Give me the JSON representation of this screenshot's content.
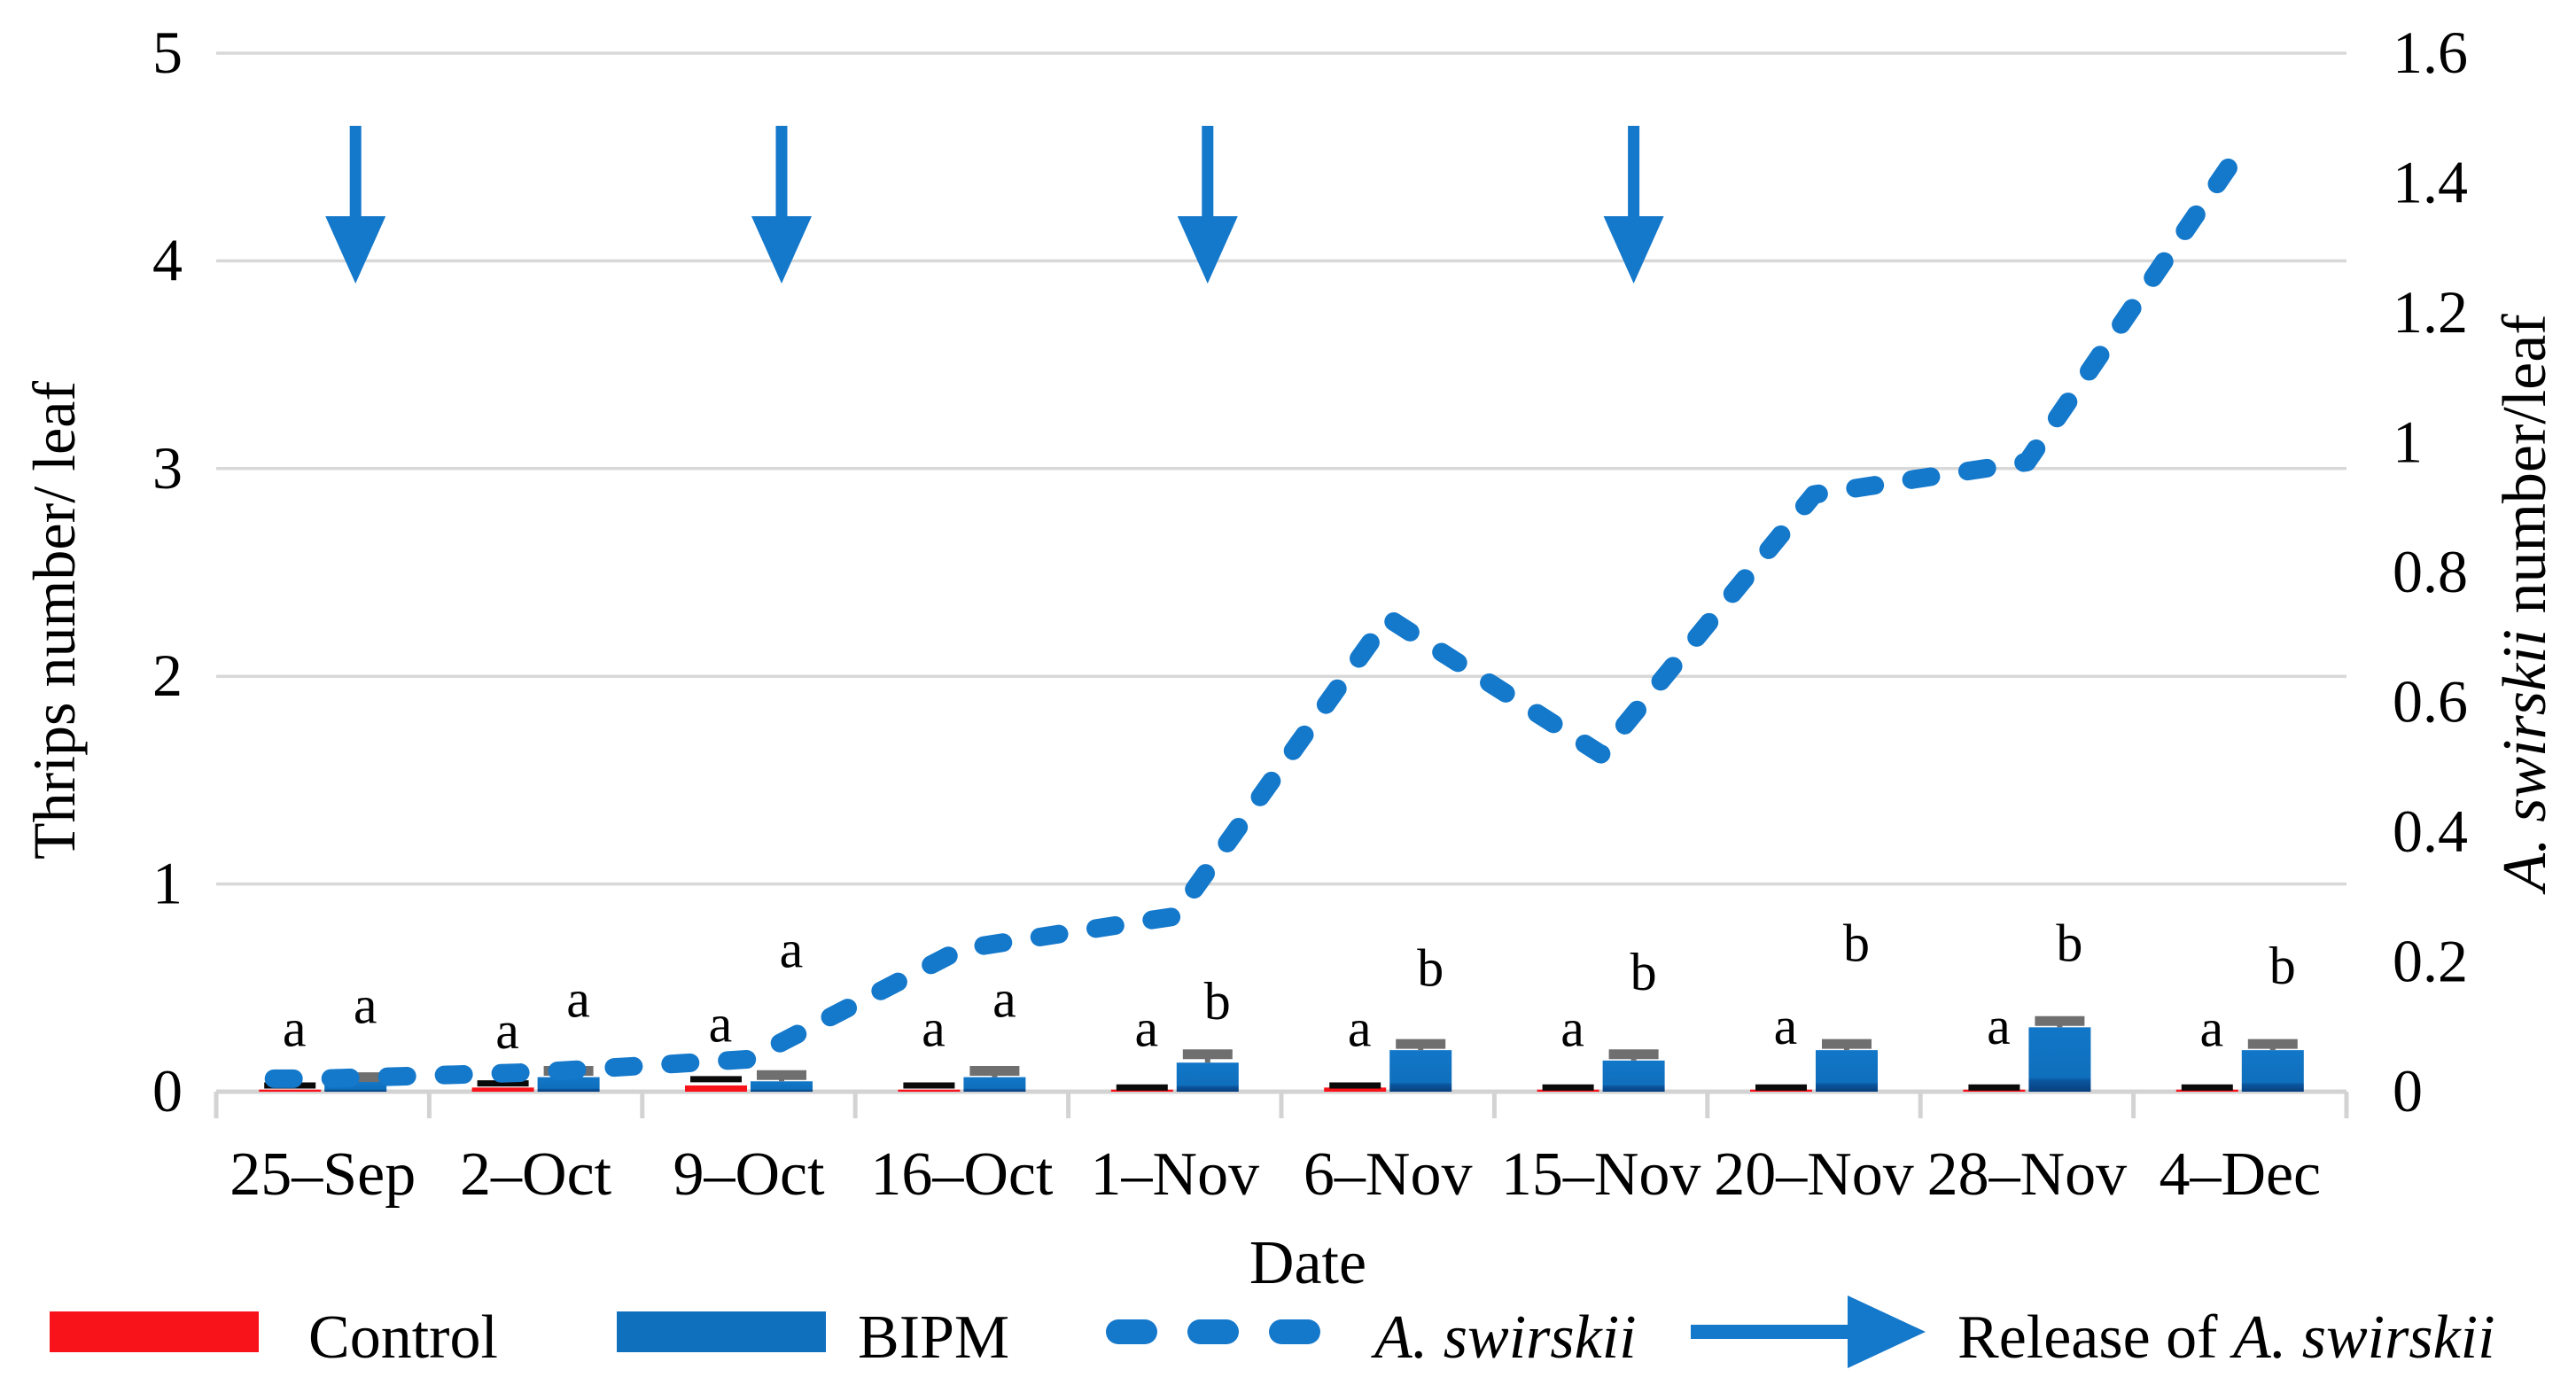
{
  "figure": {
    "kind": "dual-axis clustered bar and dashed line chart",
    "background": "#ffffff"
  },
  "colors": {
    "accent_blue": "#1478CB",
    "bar_blue": "#0F70BE",
    "bar_blue_dark": "#083F7E",
    "control_red": "#F8121A",
    "grid_gray": "#D8D8D8",
    "axis_gray": "#D3D3D3",
    "error_gray": "#6F6F6F",
    "error_black": "#0A0A0A",
    "text": "#000000"
  },
  "left_axis": {
    "title": "Thrips number/ leaf",
    "min": 0,
    "max": 5,
    "ticks": [
      "0",
      "1",
      "2",
      "3",
      "4",
      "5"
    ]
  },
  "right_axis": {
    "title_italic": "A. swirskii",
    "title_rest": " number/leaf",
    "min": 0,
    "max": 1.6,
    "ticks": [
      "0",
      "0.2",
      "0.4",
      "0.6",
      "0.8",
      "1",
      "1.2",
      "1.4",
      "1.6"
    ]
  },
  "x_axis": {
    "title": "Date",
    "categories": [
      "25–Sep",
      "2–Oct",
      "9–Oct",
      "16–Oct",
      "1–Nov",
      "6–Nov",
      "15–Nov",
      "20–Nov",
      "28–Nov",
      "4–Dec"
    ]
  },
  "legend": {
    "items": [
      {
        "label": "Control",
        "swatch": "red-bar"
      },
      {
        "label": "BIPM",
        "swatch": "blue-bar"
      },
      {
        "label": "A. swirskii",
        "swatch": "dashed-line",
        "italic": true
      },
      {
        "label_prefix": "Release of ",
        "label_italic": "A. swirskii",
        "swatch": "arrow"
      }
    ]
  },
  "chart_data": {
    "type": "bar+line",
    "grid": "horizontal-only",
    "legend_position": "bottom",
    "ylim_left": [
      0,
      5
    ],
    "ylim_right": [
      0,
      1.6
    ],
    "categories": [
      "25–Sep",
      "2–Oct",
      "9–Oct",
      "16–Oct",
      "1–Nov",
      "6–Nov",
      "15–Nov",
      "20–Nov",
      "28–Nov",
      "4–Dec"
    ],
    "series": [
      {
        "name": "Control",
        "type": "bar",
        "axis": "left",
        "color": "#F8121A",
        "values": [
          0.01,
          0.02,
          0.03,
          0.01,
          0.01,
          0.02,
          0.01,
          0.01,
          0.01,
          0.01
        ],
        "error_top": [
          0.03,
          0.04,
          0.06,
          0.03,
          0.02,
          0.03,
          0.02,
          0.02,
          0.02,
          0.02
        ],
        "sig_letters": [
          "a",
          "a",
          "a",
          "a",
          "a",
          "a",
          "a",
          "a",
          "a",
          "a"
        ],
        "letter_y": [
          0.22,
          0.21,
          0.24,
          0.22,
          0.22,
          0.22,
          0.22,
          0.23,
          0.23,
          0.22
        ]
      },
      {
        "name": "BIPM",
        "type": "bar",
        "axis": "left",
        "color": "#0F70BE",
        "values": [
          0.05,
          0.07,
          0.05,
          0.07,
          0.14,
          0.2,
          0.15,
          0.2,
          0.31,
          0.2
        ],
        "errors": [
          0.02,
          0.03,
          0.03,
          0.03,
          0.04,
          0.03,
          0.03,
          0.03,
          0.03,
          0.03
        ],
        "sig_letters": [
          "a",
          "a",
          "a",
          "a",
          "b",
          "b",
          "b",
          "b",
          "b",
          "b"
        ],
        "letter_y": [
          0.33,
          0.36,
          0.6,
          0.36,
          0.35,
          0.51,
          0.49,
          0.63,
          0.63,
          0.52
        ]
      },
      {
        "name": "A. swirskii",
        "type": "dashed-line",
        "axis": "right",
        "color": "#1478CB",
        "values": [
          0.02,
          0.03,
          0.05,
          0.22,
          0.27,
          0.73,
          0.52,
          0.92,
          0.97,
          1.45
        ]
      }
    ],
    "release_arrows": {
      "label": "Release of A. swirskii",
      "at_categories": [
        "25–Sep",
        "9–Oct",
        "1–Nov",
        "15–Nov"
      ],
      "indices": [
        0,
        2,
        4,
        6
      ]
    }
  }
}
